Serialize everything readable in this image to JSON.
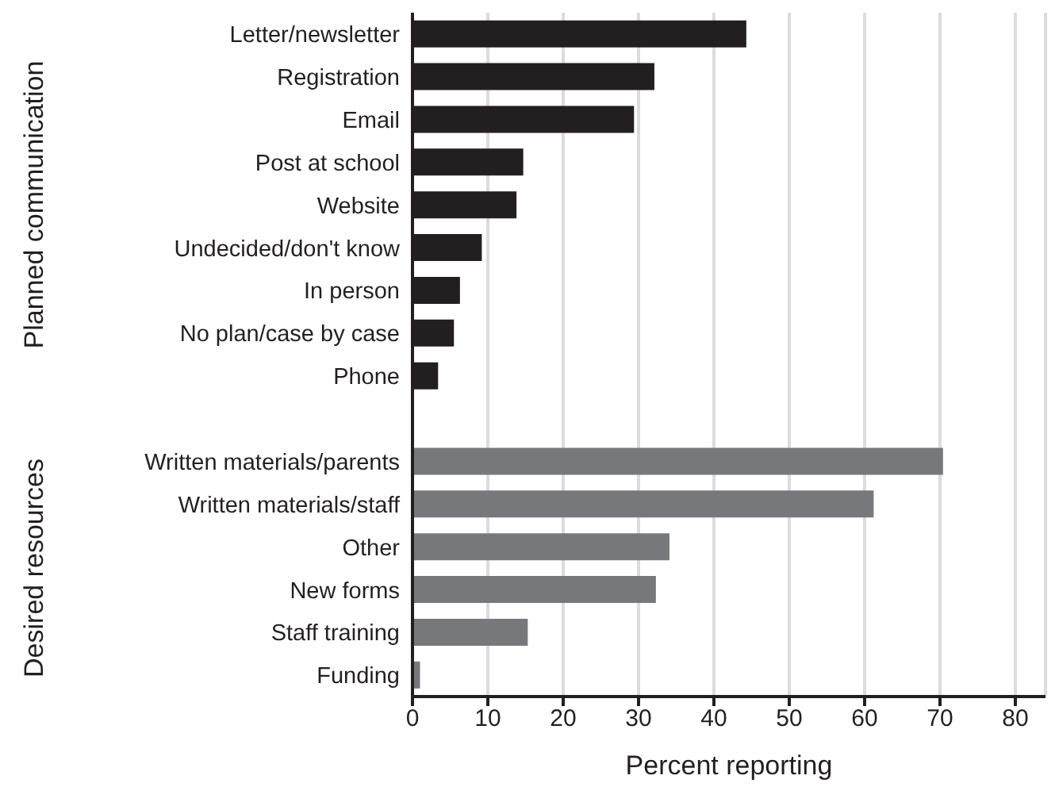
{
  "chart_data": {
    "type": "bar",
    "orientation": "horizontal",
    "categories": [
      "Letter/newsletter",
      "Registration",
      "Email",
      "Post at school",
      "Website",
      "Undecided/don't know",
      "In person",
      "No plan/case by case",
      "Phone",
      null,
      "Written materials/parents",
      "Written materials/staff",
      "Other",
      "New forms",
      "Staff training",
      "Funding"
    ],
    "values": [
      44.3,
      32.1,
      29.4,
      14.7,
      13.8,
      9.2,
      6.3,
      5.5,
      3.4,
      null,
      70.4,
      61.2,
      34.1,
      32.3,
      15.3,
      1.0
    ],
    "colors": [
      "#231f20",
      "#231f20",
      "#231f20",
      "#231f20",
      "#231f20",
      "#231f20",
      "#231f20",
      "#231f20",
      "#231f20",
      null,
      "#77787b",
      "#77787b",
      "#77787b",
      "#77787b",
      "#77787b",
      "#77787b"
    ],
    "xlabel": "Percent reporting",
    "xlim": [
      0,
      84
    ],
    "xticks": [
      0,
      10,
      20,
      30,
      40,
      50,
      60,
      70,
      80
    ],
    "grid": "x",
    "annotations": [
      "Planned communication",
      "Desired resources"
    ]
  }
}
